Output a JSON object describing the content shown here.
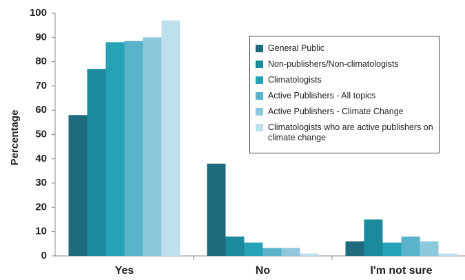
{
  "chart_data": {
    "type": "bar",
    "y_label": "Percentage",
    "categories": [
      "Yes",
      "No",
      "I'm not sure"
    ],
    "series": [
      {
        "name": "General Public",
        "color": "#1d6b7d",
        "values": [
          58,
          38,
          6
        ]
      },
      {
        "name": "Non-publishers/Non-climatologists",
        "color": "#1a8a9c",
        "values": [
          77,
          8,
          15
        ]
      },
      {
        "name": "Climatologists",
        "color": "#26a2b6",
        "values": [
          88,
          5.5,
          5.5
        ]
      },
      {
        "name": "Active Publishers - All topics",
        "color": "#58b3cb",
        "values": [
          88.5,
          3.3,
          8
        ]
      },
      {
        "name": "Active Publishers - Climate Change",
        "color": "#8fc8dc",
        "values": [
          90,
          3.3,
          6
        ]
      },
      {
        "name": "Climatologists who are active publishers on climate change",
        "color": "#bde0ec",
        "values": [
          97,
          1,
          1
        ]
      }
    ],
    "ylim": [
      0,
      100
    ],
    "yticks": [
      0,
      10,
      20,
      30,
      40,
      50,
      60,
      70,
      80,
      90,
      100
    ],
    "legend": "upper right"
  }
}
